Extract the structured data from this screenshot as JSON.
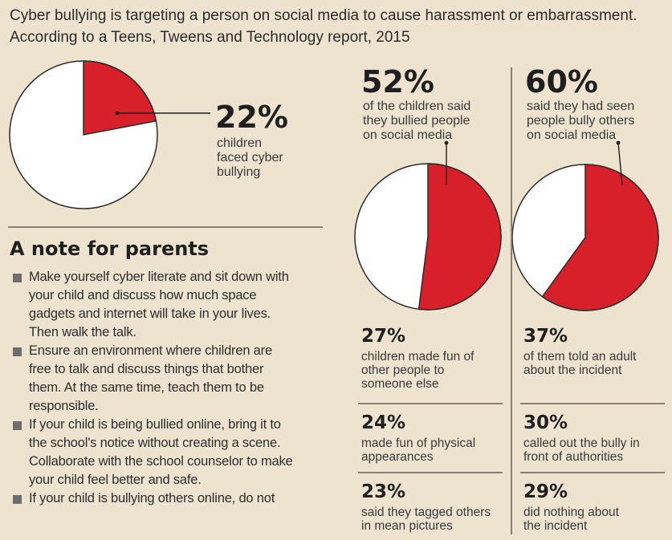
{
  "intro_text": "Cyber bullying is targeting a person on social media to cause harassment or embarrassment. According to a Teens, Tweens and Technology report, 2015",
  "colors": {
    "background": "#ede3cf",
    "accent_red": "#d8202a",
    "pie_white": "#ffffff",
    "outline": "#2a2a2a"
  },
  "chart_data": [
    {
      "type": "pie",
      "values": [
        22,
        78
      ],
      "highlighted_value": 22,
      "label_pct": "22%",
      "label_text_lines": [
        "children",
        "faced cyber",
        "bullying"
      ]
    },
    {
      "type": "pie",
      "values": [
        52,
        48
      ],
      "highlighted_value": 52,
      "label_pct": "52%",
      "label_text_lines": [
        "of the children said",
        "they bullied people",
        "on social media"
      ]
    },
    {
      "type": "pie",
      "values": [
        60,
        40
      ],
      "highlighted_value": 60,
      "label_pct": "60%",
      "label_text_lines": [
        "said they had seen",
        "people bully others",
        "on social media"
      ]
    }
  ],
  "stats_left": [
    {
      "pct": "27%",
      "lines": [
        "children made fun of",
        "other people to",
        "someone else"
      ]
    },
    {
      "pct": "24%",
      "lines": [
        "made fun of physical",
        "appearances"
      ]
    },
    {
      "pct": "23%",
      "lines": [
        "said they tagged others",
        "in mean pictures"
      ]
    }
  ],
  "stats_right": [
    {
      "pct": "37%",
      "lines": [
        "of them told an adult",
        "about the incident"
      ]
    },
    {
      "pct": "30%",
      "lines": [
        "called out the bully in",
        "front of authorities"
      ]
    },
    {
      "pct": "29%",
      "lines": [
        "did nothing about",
        "the incident"
      ]
    }
  ],
  "parents": {
    "heading": "A note for parents",
    "items": [
      [
        "Make yourself cyber literate and sit down with",
        "your child and discuss how much space",
        "gadgets and internet will take in your lives.",
        "Then walk the talk."
      ],
      [
        "Ensure an environment where children are",
        "free to talk and discuss things that bother",
        "them. At the same time, teach them to be",
        "responsible."
      ],
      [
        "If your child is being bullied online, bring it to",
        "the school's notice without creating a scene.",
        "Collaborate with the school counselor to make",
        "your child feel better and safe."
      ],
      [
        "If your child is bullying others online, do not"
      ]
    ]
  }
}
